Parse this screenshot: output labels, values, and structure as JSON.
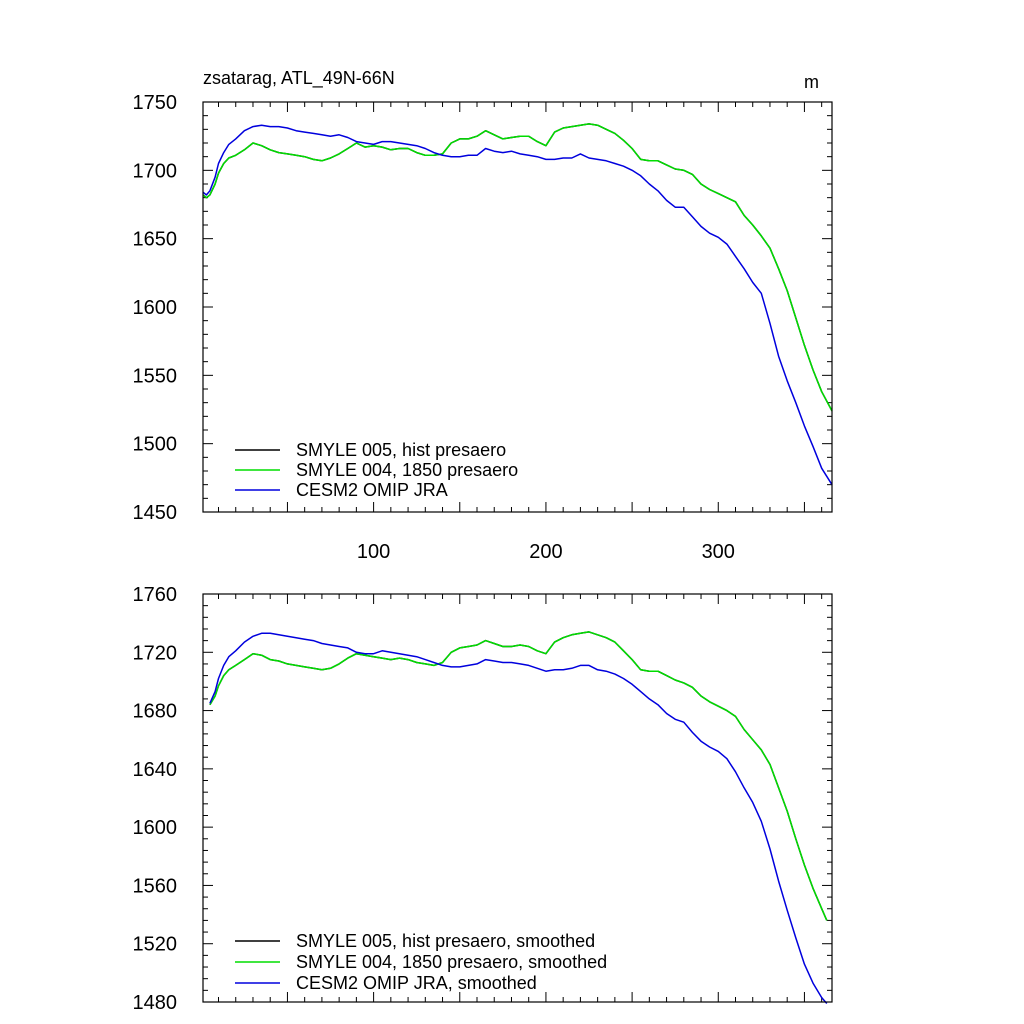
{
  "chart_data": [
    {
      "type": "line",
      "title": "zsatarag, ATL_49N-66N",
      "units": "m",
      "xlim": [
        1,
        366
      ],
      "ylim": [
        1450,
        1750
      ],
      "yticks": [
        1450,
        1500,
        1550,
        1600,
        1650,
        1700,
        1750
      ],
      "xticks": [
        100,
        200,
        300
      ],
      "legend_position": "lower-left",
      "series": [
        {
          "name": "SMYLE 005, hist presaero",
          "color": "#000000",
          "x": [
            1,
            3,
            5,
            8,
            10,
            13,
            16,
            20,
            25,
            30,
            35,
            40,
            45,
            50,
            55,
            60,
            65,
            70,
            75,
            80,
            85,
            90,
            95,
            100,
            105,
            110,
            115,
            120,
            125,
            130,
            135,
            140,
            145,
            150,
            155,
            160,
            165,
            170,
            175,
            180,
            185,
            190,
            195,
            200,
            205,
            210,
            215,
            220,
            225,
            230,
            235,
            240,
            245,
            250,
            255,
            260,
            265,
            270,
            275,
            280,
            285,
            290,
            295,
            300,
            305,
            310,
            315,
            320,
            325,
            330,
            335,
            340,
            345,
            350,
            355,
            360,
            366
          ],
          "y": [
            1682,
            1680,
            1682,
            1690,
            1698,
            1705,
            1709,
            1711,
            1715,
            1720,
            1718,
            1715,
            1713,
            1712,
            1711,
            1710,
            1708,
            1707,
            1709,
            1712,
            1716,
            1720,
            1717,
            1718,
            1717,
            1715,
            1716,
            1716,
            1713,
            1711,
            1711,
            1712,
            1720,
            1723,
            1723,
            1725,
            1729,
            1726,
            1723,
            1724,
            1725,
            1725,
            1721,
            1718,
            1728,
            1731,
            1732,
            1733,
            1734,
            1733,
            1730,
            1727,
            1722,
            1716,
            1708,
            1707,
            1707,
            1704,
            1701,
            1700,
            1697,
            1690,
            1686,
            1683,
            1680,
            1677,
            1667,
            1660,
            1652,
            1643,
            1628,
            1612,
            1592,
            1572,
            1554,
            1538,
            1524
          ]
        },
        {
          "name": "SMYLE 004, 1850 presaero",
          "color": "#00dd00",
          "x": [
            1,
            3,
            5,
            8,
            10,
            13,
            16,
            20,
            25,
            30,
            35,
            40,
            45,
            50,
            55,
            60,
            65,
            70,
            75,
            80,
            85,
            90,
            95,
            100,
            105,
            110,
            115,
            120,
            125,
            130,
            135,
            140,
            145,
            150,
            155,
            160,
            165,
            170,
            175,
            180,
            185,
            190,
            195,
            200,
            205,
            210,
            215,
            220,
            225,
            230,
            235,
            240,
            245,
            250,
            255,
            260,
            265,
            270,
            275,
            280,
            285,
            290,
            295,
            300,
            305,
            310,
            315,
            320,
            325,
            330,
            335,
            340,
            345,
            350,
            355,
            360,
            366
          ],
          "y": [
            1682,
            1680,
            1682,
            1690,
            1698,
            1705,
            1709,
            1711,
            1715,
            1720,
            1718,
            1715,
            1713,
            1712,
            1711,
            1710,
            1708,
            1707,
            1709,
            1712,
            1716,
            1720,
            1717,
            1718,
            1717,
            1715,
            1716,
            1716,
            1713,
            1711,
            1711,
            1712,
            1720,
            1723,
            1723,
            1725,
            1729,
            1726,
            1723,
            1724,
            1725,
            1725,
            1721,
            1718,
            1728,
            1731,
            1732,
            1733,
            1734,
            1733,
            1730,
            1727,
            1722,
            1716,
            1708,
            1707,
            1707,
            1704,
            1701,
            1700,
            1697,
            1690,
            1686,
            1683,
            1680,
            1677,
            1667,
            1660,
            1652,
            1643,
            1628,
            1612,
            1592,
            1572,
            1554,
            1538,
            1524
          ]
        },
        {
          "name": "CESM2 OMIP JRA",
          "color": "#0000dd",
          "x": [
            1,
            3,
            5,
            8,
            10,
            13,
            16,
            20,
            25,
            30,
            35,
            40,
            45,
            50,
            55,
            60,
            65,
            70,
            75,
            80,
            85,
            90,
            95,
            100,
            105,
            110,
            115,
            120,
            125,
            130,
            135,
            140,
            145,
            150,
            155,
            160,
            165,
            170,
            175,
            180,
            185,
            190,
            195,
            200,
            205,
            210,
            215,
            220,
            225,
            230,
            235,
            240,
            245,
            250,
            255,
            260,
            265,
            270,
            275,
            280,
            285,
            290,
            295,
            300,
            305,
            310,
            315,
            320,
            325,
            330,
            335,
            340,
            345,
            350,
            355,
            360,
            366
          ],
          "y": [
            1684,
            1682,
            1685,
            1695,
            1705,
            1713,
            1719,
            1723,
            1729,
            1732,
            1733,
            1732,
            1732,
            1731,
            1729,
            1728,
            1727,
            1726,
            1725,
            1726,
            1724,
            1721,
            1720,
            1719,
            1721,
            1721,
            1720,
            1719,
            1718,
            1716,
            1713,
            1711,
            1710,
            1710,
            1711,
            1711,
            1716,
            1714,
            1713,
            1714,
            1712,
            1711,
            1710,
            1708,
            1708,
            1709,
            1709,
            1712,
            1709,
            1708,
            1707,
            1705,
            1703,
            1700,
            1696,
            1690,
            1685,
            1678,
            1673,
            1673,
            1666,
            1659,
            1654,
            1651,
            1646,
            1637,
            1628,
            1618,
            1610,
            1588,
            1564,
            1546,
            1530,
            1513,
            1498,
            1482,
            1470
          ]
        }
      ]
    },
    {
      "type": "line",
      "title": "",
      "xlim": [
        1,
        366
      ],
      "ylim": [
        1480,
        1760
      ],
      "yticks": [
        1480,
        1520,
        1560,
        1600,
        1640,
        1680,
        1720,
        1760
      ],
      "xticks": [
        100,
        200,
        300
      ],
      "legend_position": "lower-left",
      "series": [
        {
          "name": "SMYLE 005, hist presaero, smoothed",
          "color": "#000000",
          "x": [
            5,
            8,
            10,
            13,
            16,
            20,
            25,
            30,
            35,
            40,
            45,
            50,
            55,
            60,
            65,
            70,
            75,
            80,
            85,
            90,
            95,
            100,
            105,
            110,
            115,
            120,
            125,
            130,
            135,
            140,
            145,
            150,
            155,
            160,
            165,
            170,
            175,
            180,
            185,
            190,
            195,
            200,
            205,
            210,
            215,
            220,
            225,
            230,
            235,
            240,
            245,
            250,
            255,
            260,
            265,
            270,
            275,
            280,
            285,
            290,
            295,
            300,
            305,
            310,
            315,
            320,
            325,
            330,
            335,
            340,
            345,
            350,
            355,
            360,
            363
          ],
          "y": [
            1684,
            1690,
            1697,
            1704,
            1708,
            1711,
            1715,
            1719,
            1718,
            1715,
            1714,
            1712,
            1711,
            1710,
            1709,
            1708,
            1709,
            1712,
            1716,
            1719,
            1718,
            1717,
            1716,
            1715,
            1716,
            1715,
            1713,
            1712,
            1711,
            1713,
            1720,
            1723,
            1724,
            1725,
            1728,
            1726,
            1724,
            1724,
            1725,
            1724,
            1721,
            1719,
            1727,
            1730,
            1732,
            1733,
            1734,
            1732,
            1730,
            1727,
            1721,
            1715,
            1708,
            1707,
            1707,
            1704,
            1701,
            1699,
            1696,
            1690,
            1686,
            1683,
            1680,
            1676,
            1667,
            1660,
            1653,
            1643,
            1627,
            1611,
            1592,
            1574,
            1558,
            1544,
            1536
          ]
        },
        {
          "name": "SMYLE 004, 1850 presaero, smoothed",
          "color": "#00dd00",
          "x": [
            5,
            8,
            10,
            13,
            16,
            20,
            25,
            30,
            35,
            40,
            45,
            50,
            55,
            60,
            65,
            70,
            75,
            80,
            85,
            90,
            95,
            100,
            105,
            110,
            115,
            120,
            125,
            130,
            135,
            140,
            145,
            150,
            155,
            160,
            165,
            170,
            175,
            180,
            185,
            190,
            195,
            200,
            205,
            210,
            215,
            220,
            225,
            230,
            235,
            240,
            245,
            250,
            255,
            260,
            265,
            270,
            275,
            280,
            285,
            290,
            295,
            300,
            305,
            310,
            315,
            320,
            325,
            330,
            335,
            340,
            345,
            350,
            355,
            360,
            363
          ],
          "y": [
            1684,
            1690,
            1697,
            1704,
            1708,
            1711,
            1715,
            1719,
            1718,
            1715,
            1714,
            1712,
            1711,
            1710,
            1709,
            1708,
            1709,
            1712,
            1716,
            1719,
            1718,
            1717,
            1716,
            1715,
            1716,
            1715,
            1713,
            1712,
            1711,
            1713,
            1720,
            1723,
            1724,
            1725,
            1728,
            1726,
            1724,
            1724,
            1725,
            1724,
            1721,
            1719,
            1727,
            1730,
            1732,
            1733,
            1734,
            1732,
            1730,
            1727,
            1721,
            1715,
            1708,
            1707,
            1707,
            1704,
            1701,
            1699,
            1696,
            1690,
            1686,
            1683,
            1680,
            1676,
            1667,
            1660,
            1653,
            1643,
            1627,
            1611,
            1592,
            1574,
            1558,
            1544,
            1536
          ]
        },
        {
          "name": "CESM2 OMIP JRA, smoothed",
          "color": "#0000dd",
          "x": [
            5,
            8,
            10,
            13,
            16,
            20,
            25,
            30,
            35,
            40,
            45,
            50,
            55,
            60,
            65,
            70,
            75,
            80,
            85,
            90,
            95,
            100,
            105,
            110,
            115,
            120,
            125,
            130,
            135,
            140,
            145,
            150,
            155,
            160,
            165,
            170,
            175,
            180,
            185,
            190,
            195,
            200,
            205,
            210,
            215,
            220,
            225,
            230,
            235,
            240,
            245,
            250,
            255,
            260,
            265,
            270,
            275,
            280,
            285,
            290,
            295,
            300,
            305,
            310,
            315,
            320,
            325,
            330,
            335,
            340,
            345,
            350,
            355,
            360,
            363
          ],
          "y": [
            1685,
            1693,
            1702,
            1711,
            1717,
            1721,
            1727,
            1731,
            1733,
            1733,
            1732,
            1731,
            1730,
            1729,
            1728,
            1726,
            1725,
            1724,
            1723,
            1720,
            1719,
            1719,
            1721,
            1720,
            1719,
            1718,
            1717,
            1715,
            1713,
            1711,
            1710,
            1710,
            1711,
            1712,
            1715,
            1714,
            1713,
            1713,
            1712,
            1711,
            1709,
            1707,
            1708,
            1708,
            1709,
            1711,
            1711,
            1708,
            1707,
            1705,
            1702,
            1698,
            1693,
            1688,
            1684,
            1678,
            1674,
            1672,
            1665,
            1659,
            1655,
            1652,
            1647,
            1638,
            1627,
            1617,
            1604,
            1585,
            1563,
            1543,
            1524,
            1506,
            1493,
            1483,
            1479
          ]
        }
      ]
    }
  ]
}
